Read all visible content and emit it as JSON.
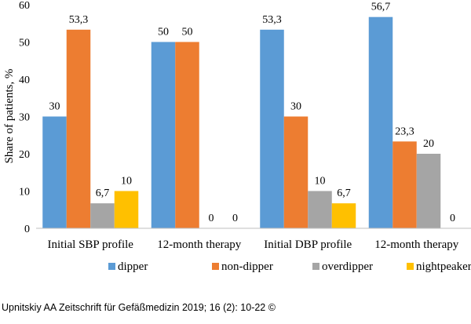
{
  "chart_data": {
    "type": "bar",
    "ylabel": "Share of patients, %",
    "ylim": [
      0,
      60
    ],
    "yticks": [
      0,
      10,
      20,
      30,
      40,
      50,
      60
    ],
    "grid": false,
    "legend_position": "bottom",
    "categories": [
      "Initial SBP profile",
      "12-month therapy",
      "Initial DBP profile",
      "12-month therapy"
    ],
    "series": [
      {
        "name": "dipper",
        "color": "#5b9bd5",
        "values": [
          30,
          50,
          53.3,
          56.7
        ],
        "labels": [
          "30",
          "50",
          "53,3",
          "56,7"
        ]
      },
      {
        "name": "non-dipper",
        "color": "#ed7d31",
        "values": [
          53.3,
          50,
          30,
          23.3
        ],
        "labels": [
          "53,3",
          "50",
          "30",
          "23,3"
        ]
      },
      {
        "name": "overdipper",
        "color": "#a5a5a5",
        "values": [
          6.7,
          0,
          10,
          20
        ],
        "labels": [
          "6,7",
          "0",
          "10",
          "20"
        ]
      },
      {
        "name": "nightpeaker",
        "color": "#ffc000",
        "values": [
          10,
          0,
          6.7,
          0
        ],
        "labels": [
          "10",
          "0",
          "6,7",
          "0"
        ]
      }
    ]
  },
  "source_note": "Upnitskiy AA Zeitschrift für Gefäßmedizin 2019; 16 (2): 10-22 ©"
}
